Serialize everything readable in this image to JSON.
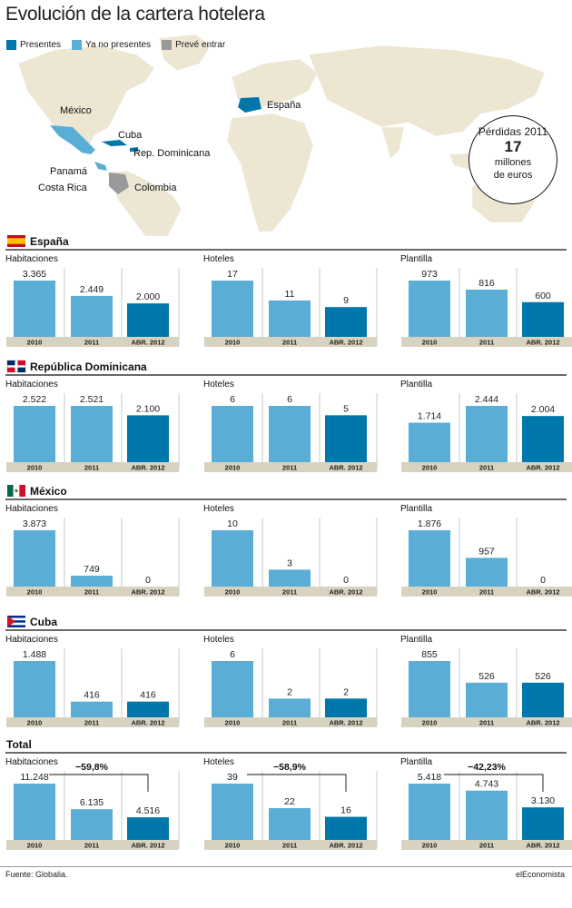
{
  "title": "Evolución de la cartera hotelera",
  "legend": [
    {
      "label": "Presentes",
      "color": "#0077aa"
    },
    {
      "label": "Ya no presentes",
      "color": "#5aaed6"
    },
    {
      "label": "Prevé entrar",
      "color": "#999999"
    }
  ],
  "map": {
    "labels": {
      "mexico": "México",
      "cuba": "Cuba",
      "rep_dominicana": "Rep. Dominicana",
      "panama": "Panamá",
      "costa_rica": "Costa Rica",
      "colombia": "Colombia",
      "espana": "España"
    }
  },
  "losses": {
    "title": "Pérdidas 2011",
    "value": "17",
    "unit_line1": "millones",
    "unit_line2": "de euros"
  },
  "colors": {
    "light": "#5aaed6",
    "dark": "#0077aa",
    "land": "#ece6d2",
    "axis_bg": "#d8d3c0"
  },
  "chart_data": [
    {
      "type": "bar",
      "section": "España",
      "flag": "spain",
      "categories": [
        "2010",
        "2011",
        "ABR. 2012"
      ],
      "panels": [
        {
          "title": "Habitaciones",
          "values": [
            3365,
            2449,
            2000
          ],
          "labels": [
            "3.365",
            "2.449",
            "2.000"
          ]
        },
        {
          "title": "Hoteles",
          "values": [
            17,
            11,
            9
          ],
          "labels": [
            "17",
            "11",
            "9"
          ]
        },
        {
          "title": "Plantilla",
          "values": [
            973,
            816,
            600
          ],
          "labels": [
            "973",
            "816",
            "600"
          ]
        }
      ]
    },
    {
      "type": "bar",
      "section": "República Dominicana",
      "flag": "dominican",
      "categories": [
        "2010",
        "2011",
        "ABR. 2012"
      ],
      "panels": [
        {
          "title": "Habitaciones",
          "values": [
            2522,
            2521,
            2100
          ],
          "labels": [
            "2.522",
            "2.521",
            "2.100"
          ]
        },
        {
          "title": "Hoteles",
          "values": [
            6,
            6,
            5
          ],
          "labels": [
            "6",
            "6",
            "5"
          ]
        },
        {
          "title": "Plantilla",
          "values": [
            1714,
            2444,
            2004
          ],
          "labels": [
            "1.714",
            "2.444",
            "2.004"
          ]
        }
      ]
    },
    {
      "type": "bar",
      "section": "México",
      "flag": "mexico",
      "categories": [
        "2010",
        "2011",
        "ABR. 2012"
      ],
      "panels": [
        {
          "title": "Habitaciones",
          "values": [
            3873,
            749,
            0
          ],
          "labels": [
            "3.873",
            "749",
            "0"
          ]
        },
        {
          "title": "Hoteles",
          "values": [
            10,
            3,
            0
          ],
          "labels": [
            "10",
            "3",
            "0"
          ]
        },
        {
          "title": "Plantilla",
          "values": [
            1876,
            957,
            0
          ],
          "labels": [
            "1.876",
            "957",
            "0"
          ]
        }
      ]
    },
    {
      "type": "bar",
      "section": "Cuba",
      "flag": "cuba",
      "categories": [
        "2010",
        "2011",
        "ABR. 2012"
      ],
      "panels": [
        {
          "title": "Habitaciones",
          "values": [
            1488,
            416,
            416
          ],
          "labels": [
            "1.488",
            "416",
            "416"
          ]
        },
        {
          "title": "Hoteles",
          "values": [
            6,
            2,
            2
          ],
          "labels": [
            "6",
            "2",
            "2"
          ]
        },
        {
          "title": "Plantilla",
          "values": [
            855,
            526,
            526
          ],
          "labels": [
            "855",
            "526",
            "526"
          ]
        }
      ]
    },
    {
      "type": "bar",
      "section": "Total",
      "flag": "",
      "categories": [
        "2010",
        "2011",
        "ABR. 2012"
      ],
      "panels": [
        {
          "title": "Habitaciones",
          "values": [
            11248,
            6135,
            4516
          ],
          "labels": [
            "11.248",
            "6.135",
            "4.516"
          ],
          "change": "−59,8%"
        },
        {
          "title": "Hoteles",
          "values": [
            39,
            22,
            16
          ],
          "labels": [
            "39",
            "22",
            "16"
          ],
          "change": "−58,9%"
        },
        {
          "title": "Plantilla",
          "values": [
            5418,
            4743,
            3130
          ],
          "labels": [
            "5.418",
            "4.743",
            "3.130"
          ],
          "change": "−42,23%"
        }
      ]
    }
  ],
  "footer": {
    "source": "Fuente: Globalia.",
    "brand": "elEconomista"
  }
}
